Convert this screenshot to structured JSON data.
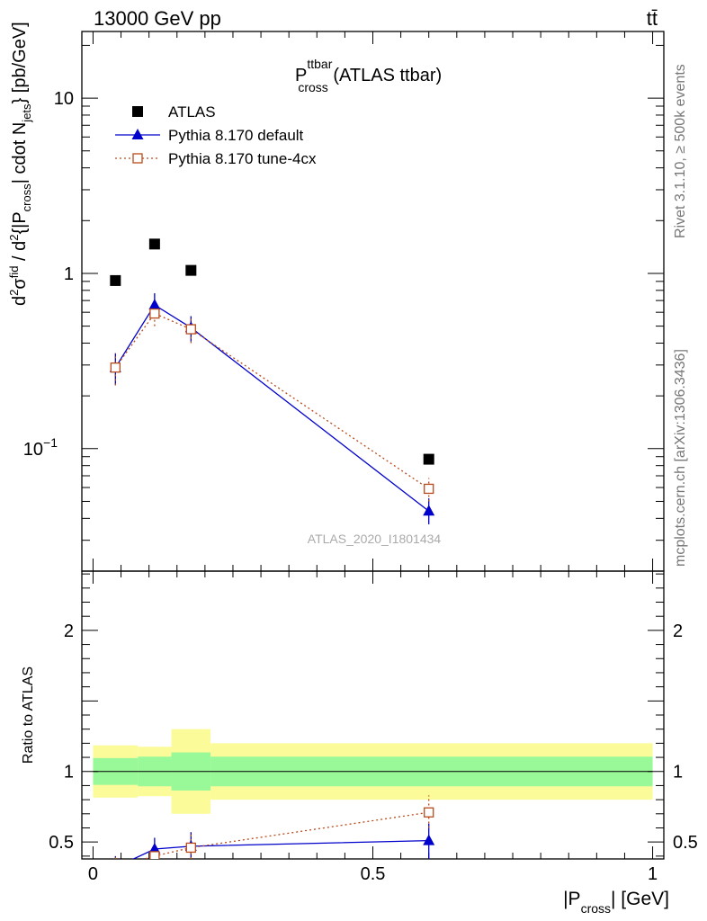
{
  "header": {
    "left": "13000 GeV pp",
    "right": "tt̄"
  },
  "title": {
    "main": "P",
    "sup": "ttbar",
    "sub": "cross",
    "rest": " (ATLAS ttbar)"
  },
  "side_labels": {
    "rivet": "Rivet 3.1.10, ≥ 500k events",
    "mcplots": "mcplots.cern.ch [arXiv:1306.3436]"
  },
  "watermark": "ATLAS_2020_I1801434",
  "axes": {
    "ylabel_top": "d²σᶠᶦᵈ / d²{|P_cross| cdot N_jets} [pb/GeV]",
    "ylabel_bottom": "Ratio to ATLAS",
    "xlabel": "|P_cross| [GeV]",
    "xlabel_pre": "|P",
    "xlabel_sub": "cross",
    "xlabel_post": "| [GeV]",
    "xlim": [
      -0.02,
      1.02
    ],
    "ylim_top": [
      0.02,
      24
    ],
    "ylim_bottom": [
      0.38,
      2.42
    ],
    "y_top_log": true,
    "xticks": [
      {
        "v": 0,
        "t": "0"
      },
      {
        "v": 0.5,
        "t": "0.5"
      },
      {
        "v": 1,
        "t": "1"
      }
    ],
    "yticks_top": [
      {
        "v": 10,
        "t": "10"
      },
      {
        "v": 1,
        "t": "1"
      },
      {
        "v": 0.1,
        "t": "10",
        "sup": "−1"
      }
    ],
    "yticks_bottom": [
      {
        "v": 2,
        "t": "2"
      },
      {
        "v": 1,
        "t": "1"
      },
      {
        "v": 0.5,
        "t": "0.5"
      }
    ]
  },
  "legend": [
    {
      "name": "ATLAS",
      "marker": "square",
      "color": "#000000"
    },
    {
      "name": "Pythia 8.170 default",
      "marker": "triangle",
      "color": "#0000cc"
    },
    {
      "name": "Pythia 8.170 tune-4cx",
      "marker": "open-square",
      "color": "#b84a1a"
    }
  ],
  "chart_data": {
    "type": "scatter",
    "title": "P^ttbar_cross (ATLAS ttbar)",
    "xlabel": "|P_cross| [GeV]",
    "ylabel": "d²σ/d²{|P_cross| cdot N_jets} [pb/GeV]",
    "x": [
      0.04,
      0.11,
      0.175,
      0.6
    ],
    "bins": [
      [
        0.0,
        0.08
      ],
      [
        0.08,
        0.14
      ],
      [
        0.14,
        0.21
      ],
      [
        0.21,
        1.0
      ]
    ],
    "series": [
      {
        "name": "ATLAS",
        "values": [
          0.91,
          1.47,
          1.04,
          0.087
        ]
      },
      {
        "name": "Pythia 8.170 default",
        "values": [
          0.29,
          0.66,
          0.49,
          0.044
        ],
        "err_lo": [
          0.23,
          0.56,
          0.41,
          0.037
        ],
        "err_hi": [
          0.35,
          0.77,
          0.57,
          0.052
        ]
      },
      {
        "name": "Pythia 8.170 tune-4cx",
        "values": [
          0.29,
          0.59,
          0.48,
          0.059
        ],
        "err_lo": [
          0.23,
          0.5,
          0.4,
          0.05
        ],
        "err_hi": [
          0.35,
          0.69,
          0.56,
          0.068
        ]
      }
    ],
    "ratio": {
      "default": {
        "values": [
          0.32,
          0.45,
          0.47,
          0.51
        ],
        "err_lo": [
          0.22,
          0.35,
          0.37,
          0.38
        ],
        "err_hi": [
          0.4,
          0.53,
          0.57,
          0.63
        ]
      },
      "tune4cx": {
        "values": [
          0.32,
          0.4,
          0.46,
          0.71
        ],
        "err_lo": [
          0.22,
          0.32,
          0.38,
          0.6
        ],
        "err_hi": [
          0.4,
          0.48,
          0.56,
          0.83
        ]
      },
      "band_inner": [
        [
          0.905,
          1.095
        ],
        [
          0.895,
          1.105
        ],
        [
          0.865,
          1.135
        ],
        [
          0.895,
          1.105
        ]
      ],
      "band_outer": [
        [
          0.815,
          1.185
        ],
        [
          0.825,
          1.175
        ],
        [
          0.7,
          1.3
        ],
        [
          0.8,
          1.2
        ]
      ]
    }
  }
}
